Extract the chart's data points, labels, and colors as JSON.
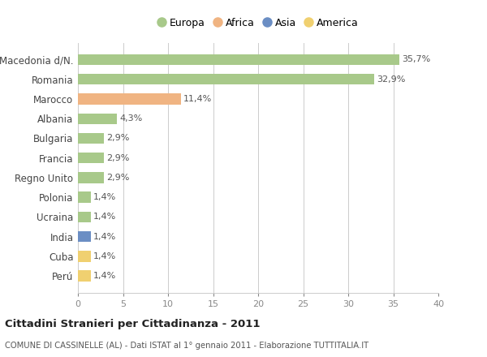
{
  "countries": [
    "Macedonia d/N.",
    "Romania",
    "Marocco",
    "Albania",
    "Bulgaria",
    "Francia",
    "Regno Unito",
    "Polonia",
    "Ucraina",
    "India",
    "Cuba",
    "Perú"
  ],
  "values": [
    35.7,
    32.9,
    11.4,
    4.3,
    2.9,
    2.9,
    2.9,
    1.4,
    1.4,
    1.4,
    1.4,
    1.4
  ],
  "labels": [
    "35,7%",
    "32,9%",
    "11,4%",
    "4,3%",
    "2,9%",
    "2,9%",
    "2,9%",
    "1,4%",
    "1,4%",
    "1,4%",
    "1,4%",
    "1,4%"
  ],
  "continents": [
    "Europa",
    "Europa",
    "Africa",
    "Europa",
    "Europa",
    "Europa",
    "Europa",
    "Europa",
    "Europa",
    "Asia",
    "America",
    "America"
  ],
  "colors": {
    "Europa": "#a8c98a",
    "Africa": "#f0b482",
    "Asia": "#6b8ec4",
    "America": "#f0d070"
  },
  "xlim": [
    0,
    40
  ],
  "xticks": [
    0,
    5,
    10,
    15,
    20,
    25,
    30,
    35,
    40
  ],
  "title": "Cittadini Stranieri per Cittadinanza - 2011",
  "subtitle": "COMUNE DI CASSINELLE (AL) - Dati ISTAT al 1° gennaio 2011 - Elaborazione TUTTITALIA.IT",
  "background_color": "#ffffff",
  "grid_color": "#cccccc",
  "bar_height": 0.55,
  "legend_order": [
    "Europa",
    "Africa",
    "Asia",
    "America"
  ]
}
